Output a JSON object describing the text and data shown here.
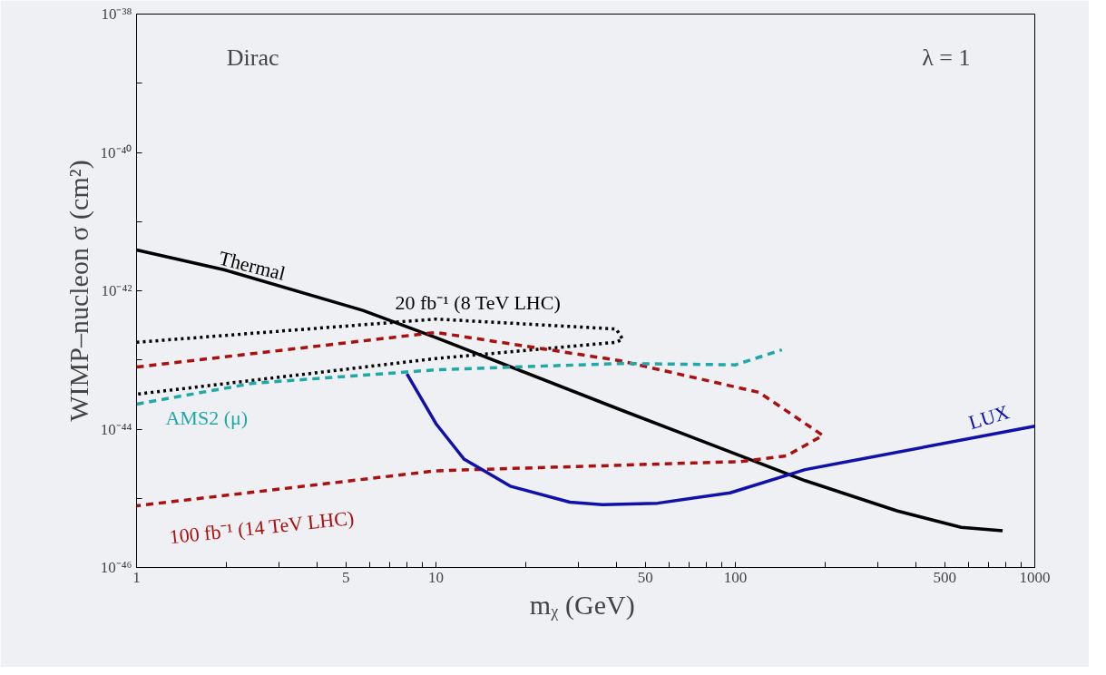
{
  "chart_data": {
    "type": "line",
    "xlabel": "mᵪ  (GeV)",
    "ylabel": "WIMP–nucleon σ (cm²)",
    "log": "xy",
    "grid": false,
    "xlim": [
      1,
      1000
    ],
    "ylim": [
      1e-46,
      1e-38
    ],
    "xticks": [
      1,
      {
        "value": 2,
        "label": null
      },
      {
        "value": 3,
        "label": null
      },
      {
        "value": 4,
        "label": null
      },
      5,
      {
        "value": 6,
        "label": null
      },
      {
        "value": 7,
        "label": null
      },
      {
        "value": 8,
        "label": null
      },
      {
        "value": 9,
        "label": null
      },
      10,
      {
        "value": 20,
        "label": null
      },
      {
        "value": 30,
        "label": null
      },
      {
        "value": 40,
        "label": null
      },
      50,
      {
        "value": 60,
        "label": null
      },
      {
        "value": 70,
        "label": null
      },
      {
        "value": 80,
        "label": null
      },
      {
        "value": 90,
        "label": null
      },
      100,
      {
        "value": 200,
        "label": null
      },
      {
        "value": 300,
        "label": null
      },
      {
        "value": 400,
        "label": null
      },
      500,
      {
        "value": 600,
        "label": null
      },
      {
        "value": 700,
        "label": null
      },
      {
        "value": 800,
        "label": null
      },
      {
        "value": 900,
        "label": null
      },
      1000
    ],
    "yticks": [
      {
        "value": 1e-46,
        "label": "10⁻⁴⁶"
      },
      {
        "value": 1e-45,
        "label": null
      },
      {
        "value": 1e-44,
        "label": "10⁻⁴⁴"
      },
      {
        "value": 1e-43,
        "label": null
      },
      {
        "value": 1e-42,
        "label": "10⁻⁴²"
      },
      {
        "value": 1e-41,
        "label": null
      },
      {
        "value": 1e-40,
        "label": "10⁻⁴⁰"
      },
      {
        "value": 1e-39,
        "label": null
      },
      {
        "value": 1e-38,
        "label": "10⁻³⁸"
      }
    ],
    "annotations": [
      "Dirac",
      "λ = 1"
    ],
    "series": [
      {
        "name": "Thermal",
        "color": "#000000",
        "line_style": "solid",
        "x": [
          1,
          1.97,
          5.7,
          10,
          41.4,
          171,
          346,
          568,
          781
        ],
        "values": [
          3.9e-42,
          2e-42,
          5.2e-43,
          2.1e-43,
          1.9e-44,
          1.8e-45,
          6.6e-46,
          3.8e-46,
          3.4e-46
        ]
      },
      {
        "name": "20 fb⁻¹ (8 TeV LHC)",
        "color": "#000000",
        "line_style": "dotted",
        "x": [
          1,
          10,
          40,
          42,
          40,
          10,
          1
        ],
        "values": [
          1.8e-43,
          3.9e-43,
          2.8e-43,
          2e-43,
          1.8e-43,
          1.05e-43,
          3.2e-44
        ]
      },
      {
        "name": "100 fb⁻¹ (14 TeV LHC)",
        "color": "#aa1010",
        "line_style": "dashed",
        "x": [
          1,
          10,
          41,
          120,
          196,
          148,
          104,
          10,
          1
        ],
        "values": [
          7.9e-44,
          2.5e-43,
          9.8e-44,
          3.4e-44,
          8.1e-45,
          4.1e-45,
          3.4e-45,
          2.5e-45,
          7.8e-46
        ]
      },
      {
        "name": "AMS2 (μ)",
        "color": "#20a8a8",
        "line_style": "dashed",
        "x": [
          1,
          2.44,
          10,
          41,
          100,
          143
        ],
        "values": [
          2.3e-44,
          4.6e-44,
          7.2e-44,
          8.9e-44,
          8.5e-44,
          1.4e-43
        ]
      },
      {
        "name": "LUX",
        "color": "#1010aa",
        "line_style": "solid",
        "x": [
          8.0,
          10,
          12.4,
          17.7,
          28,
          36,
          55,
          96,
          171,
          1000
        ],
        "values": [
          6.3e-44,
          1.2e-44,
          3.7e-45,
          1.5e-45,
          8.8e-46,
          8.1e-46,
          8.5e-46,
          1.2e-45,
          2.6e-45,
          1.1e-44
        ]
      }
    ]
  }
}
